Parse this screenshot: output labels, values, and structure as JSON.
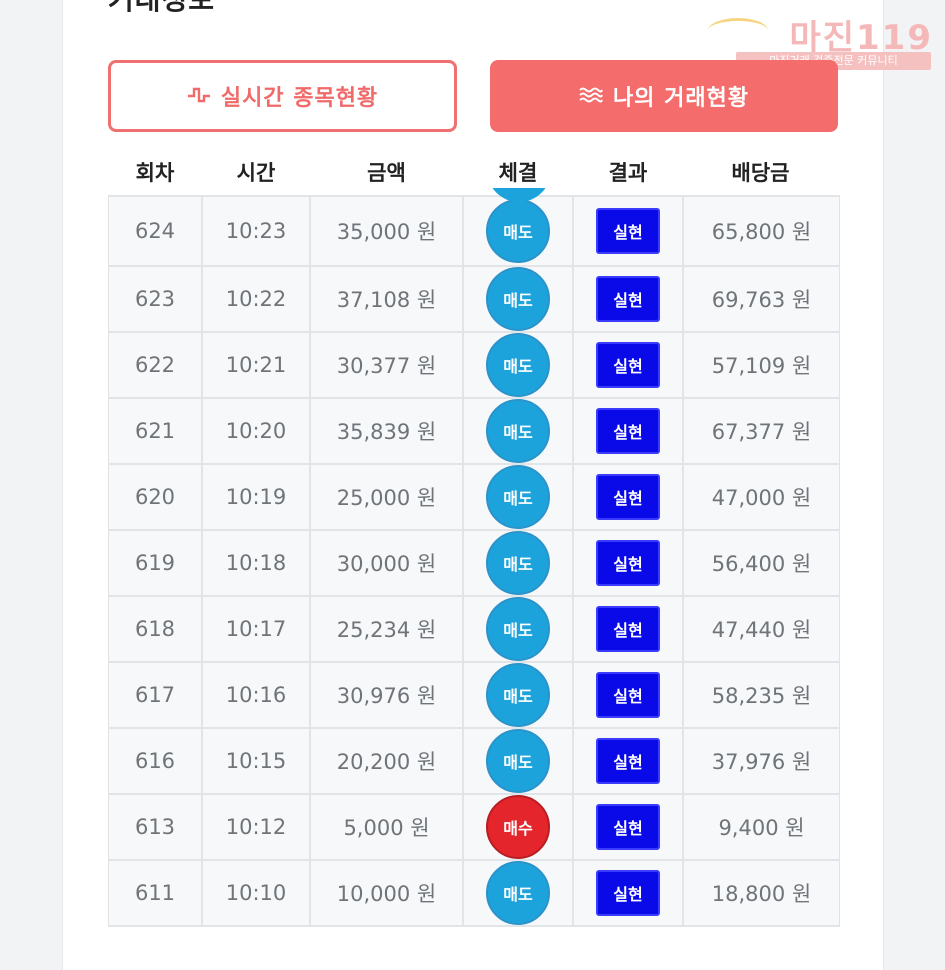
{
  "section_title": "거래정보",
  "watermark": {
    "logo": "마진119",
    "tagline": "마진거래 검증전문 커뮤니티"
  },
  "buttons": {
    "live": {
      "icon": "pulse-icon",
      "label": "실시간 종목현황"
    },
    "mine": {
      "icon": "waves-icon",
      "label": "나의 거래현황"
    }
  },
  "table": {
    "headers": [
      "회차",
      "시간",
      "금액",
      "체결",
      "결과",
      "배당금"
    ],
    "rows": [
      {
        "round": "624",
        "time": "10:23",
        "amount": "35,000 원",
        "trade": "매도",
        "result": "실현",
        "payout": "65,800 원"
      },
      {
        "round": "623",
        "time": "10:22",
        "amount": "37,108 원",
        "trade": "매도",
        "result": "실현",
        "payout": "69,763 원"
      },
      {
        "round": "622",
        "time": "10:21",
        "amount": "30,377 원",
        "trade": "매도",
        "result": "실현",
        "payout": "57,109 원"
      },
      {
        "round": "621",
        "time": "10:20",
        "amount": "35,839 원",
        "trade": "매도",
        "result": "실현",
        "payout": "67,377 원"
      },
      {
        "round": "620",
        "time": "10:19",
        "amount": "25,000 원",
        "trade": "매도",
        "result": "실현",
        "payout": "47,000 원"
      },
      {
        "round": "619",
        "time": "10:18",
        "amount": "30,000 원",
        "trade": "매도",
        "result": "실현",
        "payout": "56,400 원"
      },
      {
        "round": "618",
        "time": "10:17",
        "amount": "25,234 원",
        "trade": "매도",
        "result": "실현",
        "payout": "47,440 원"
      },
      {
        "round": "617",
        "time": "10:16",
        "amount": "30,976 원",
        "trade": "매도",
        "result": "실현",
        "payout": "58,235 원"
      },
      {
        "round": "616",
        "time": "10:15",
        "amount": "20,200 원",
        "trade": "매도",
        "result": "실현",
        "payout": "37,976 원"
      },
      {
        "round": "613",
        "time": "10:12",
        "amount": "5,000 원",
        "trade": "매수",
        "result": "실현",
        "payout": "9,400 원"
      },
      {
        "round": "611",
        "time": "10:10",
        "amount": "10,000 원",
        "trade": "매도",
        "result": "실현",
        "payout": "18,800 원"
      }
    ]
  },
  "colors": {
    "accent": "#f46c6c",
    "sell": "#1da3dc",
    "buy": "#e4262c",
    "result": "#0a0ae8"
  }
}
